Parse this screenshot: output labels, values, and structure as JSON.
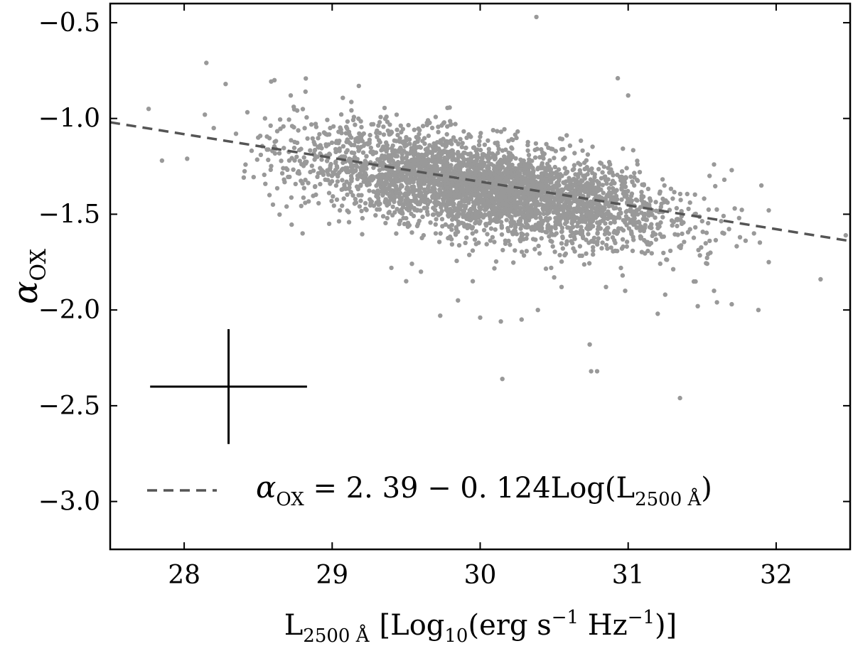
{
  "chart_data": {
    "type": "scatter",
    "title": "",
    "xlabel": {
      "main": "L",
      "sub": "2500 Å",
      "bracket_open": "[",
      "log": "Log",
      "log_sub": "10",
      "paren_open": "(",
      "unit1": "erg s",
      "sup1": "−1",
      "unit2": " Hz",
      "sup2": "−1",
      "paren_close": ")",
      "bracket_close": "]"
    },
    "ylabel": {
      "main": "α",
      "sub": "OX"
    },
    "xlim": [
      27.5,
      32.5
    ],
    "ylim": [
      -3.25,
      -0.4
    ],
    "xticks": [
      "28",
      "29",
      "30",
      "31",
      "32"
    ],
    "yticks": [
      "−0.5",
      "−1.0",
      "−1.5",
      "−2.0",
      "−2.5",
      "−3.0"
    ],
    "grid": false,
    "marker_color": "#999999",
    "fit_color": "#555555",
    "fit_line": {
      "intercept": 2.39,
      "slope": -0.124,
      "style": "dashed"
    },
    "legend": {
      "position": "bottom",
      "entries": [
        {
          "main": "α",
          "sub": "OX",
          "eq": " = 2. 39 − 0. 124Log(L",
          "sub2": "2500 Å",
          "close": ")"
        }
      ]
    },
    "error_bar": {
      "x": 28.3,
      "y": -2.4,
      "x_err": 0.53,
      "y_err": 0.3
    },
    "point_cloud": {
      "n_points": 3600,
      "x_center": 30.05,
      "x_sd": 0.62,
      "y_scatter_sd": 0.12
    },
    "series": [
      {
        "values": [
          [
            28.15,
            -0.71
          ],
          [
            27.76,
            -0.95
          ],
          [
            28.28,
            -0.82
          ],
          [
            28.61,
            -0.8
          ],
          [
            28.14,
            -0.98
          ],
          [
            28.2,
            -1.05
          ],
          [
            27.85,
            -1.22
          ],
          [
            28.02,
            -1.21
          ],
          [
            30.38,
            -0.47
          ],
          [
            30.93,
            -0.79
          ],
          [
            31.0,
            -0.88
          ],
          [
            28.35,
            -1.08
          ],
          [
            28.5,
            -1.1
          ],
          [
            28.72,
            -0.88
          ],
          [
            28.82,
            -0.86
          ],
          [
            29.18,
            -0.83
          ],
          [
            28.6,
            -1.45
          ],
          [
            28.8,
            -1.6
          ],
          [
            28.98,
            -1.55
          ],
          [
            29.73,
            -2.03
          ],
          [
            30.0,
            -2.04
          ],
          [
            30.14,
            -2.06
          ],
          [
            30.15,
            -2.36
          ],
          [
            30.28,
            -2.05
          ],
          [
            30.39,
            -2.0
          ],
          [
            30.74,
            -2.18
          ],
          [
            30.75,
            -2.32
          ],
          [
            30.79,
            -2.32
          ],
          [
            31.35,
            -2.46
          ],
          [
            32.3,
            -1.84
          ],
          [
            32.47,
            -1.61
          ],
          [
            31.88,
            -2.0
          ],
          [
            31.7,
            -1.97
          ],
          [
            31.6,
            -1.96
          ],
          [
            31.58,
            -1.9
          ],
          [
            31.47,
            -1.98
          ],
          [
            31.72,
            -1.47
          ],
          [
            31.75,
            -1.52
          ],
          [
            31.9,
            -1.35
          ],
          [
            31.95,
            -1.75
          ],
          [
            31.95,
            -1.48
          ],
          [
            31.85,
            -1.6
          ],
          [
            31.55,
            -1.3
          ],
          [
            31.65,
            -1.32
          ],
          [
            31.7,
            -1.27
          ],
          [
            31.58,
            -1.24
          ],
          [
            31.45,
            -1.5
          ],
          [
            31.35,
            -1.67
          ],
          [
            30.98,
            -1.9
          ],
          [
            30.85,
            -1.88
          ],
          [
            31.25,
            -1.92
          ],
          [
            31.2,
            -2.02
          ],
          [
            29.6,
            -1.8
          ],
          [
            29.5,
            -1.85
          ],
          [
            29.4,
            -1.78
          ],
          [
            29.85,
            -1.95
          ],
          [
            29.95,
            -1.85
          ],
          [
            30.5,
            -1.83
          ],
          [
            30.55,
            -1.88
          ],
          [
            30.48,
            -1.78
          ],
          [
            29.7,
            -1.6
          ],
          [
            29.9,
            -1.65
          ],
          [
            28.9,
            -1.2
          ],
          [
            29.1,
            -1.28
          ]
        ]
      }
    ]
  }
}
